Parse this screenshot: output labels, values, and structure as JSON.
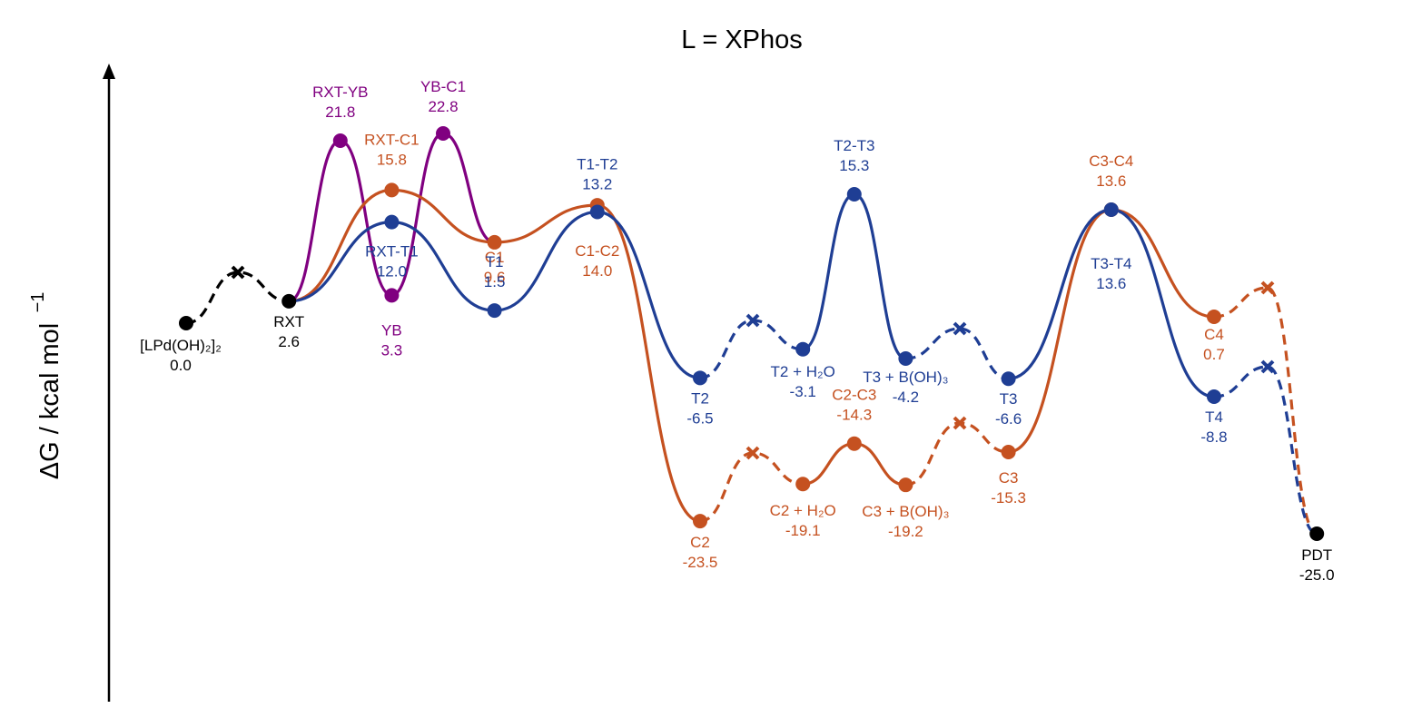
{
  "chart_data": {
    "type": "line",
    "title": "L = XPhos",
    "ylabel": "ΔG / kcal mol",
    "ylabel_sup": "−1",
    "colors": {
      "black": "#000000",
      "purple": "#800080",
      "orange": "#c55120",
      "blue": "#1f3e94"
    },
    "nodes": [
      {
        "id": "start",
        "name": "[LPd(OH)₂]₂",
        "value": "0.0",
        "color": "black"
      },
      {
        "id": "rxt",
        "name": "RXT",
        "value": "2.6",
        "color": "black"
      },
      {
        "id": "rxtyb",
        "name": "RXT-YB",
        "value": "21.8",
        "color": "purple"
      },
      {
        "id": "yb",
        "name": "YB",
        "value": "3.3",
        "color": "purple"
      },
      {
        "id": "ybc1",
        "name": "YB-C1",
        "value": "22.8",
        "color": "purple"
      },
      {
        "id": "rxtc1",
        "name": "RXT-C1",
        "value": "15.8",
        "color": "orange"
      },
      {
        "id": "c1",
        "name": "C1",
        "value": "9.6",
        "color": "orange"
      },
      {
        "id": "c1c2",
        "name": "C1-C2",
        "value": "14.0",
        "color": "orange"
      },
      {
        "id": "c2",
        "name": "C2",
        "value": "-23.5",
        "color": "orange"
      },
      {
        "id": "c2h2o",
        "name": "C2 + H₂O",
        "value": "-19.1",
        "color": "orange"
      },
      {
        "id": "c2c3",
        "name": "C2-C3",
        "value": "-14.3",
        "color": "orange"
      },
      {
        "id": "c3boh",
        "name": "C3 + B(OH)₃",
        "value": "-19.2",
        "color": "orange"
      },
      {
        "id": "c3",
        "name": "C3",
        "value": "-15.3",
        "color": "orange"
      },
      {
        "id": "c3c4",
        "name": "C3-C4",
        "value": "13.6",
        "color": "orange"
      },
      {
        "id": "c4",
        "name": "C4",
        "value": "0.7",
        "color": "orange"
      },
      {
        "id": "rxtt1",
        "name": "RXT-T1",
        "value": "12.0",
        "color": "blue"
      },
      {
        "id": "t1",
        "name": "T1",
        "value": "1.5",
        "color": "blue"
      },
      {
        "id": "t1t2",
        "name": "T1-T2",
        "value": "13.2",
        "color": "blue"
      },
      {
        "id": "t2",
        "name": "T2",
        "value": "-6.5",
        "color": "blue"
      },
      {
        "id": "t2h2o",
        "name": "T2 + H₂O",
        "value": "-3.1",
        "color": "blue"
      },
      {
        "id": "t2t3",
        "name": "T2-T3",
        "value": "15.3",
        "color": "blue"
      },
      {
        "id": "t3boh",
        "name": "T3 + B(OH)₃",
        "value": "-4.2",
        "color": "blue"
      },
      {
        "id": "t3",
        "name": "T3",
        "value": "-6.6",
        "color": "blue"
      },
      {
        "id": "t3t4",
        "name": "T3-T4",
        "value": "13.6",
        "color": "blue"
      },
      {
        "id": "t4",
        "name": "T4",
        "value": "-8.8",
        "color": "blue"
      },
      {
        "id": "pdt",
        "name": "PDT",
        "value": "-25.0",
        "color": "black"
      }
    ]
  }
}
